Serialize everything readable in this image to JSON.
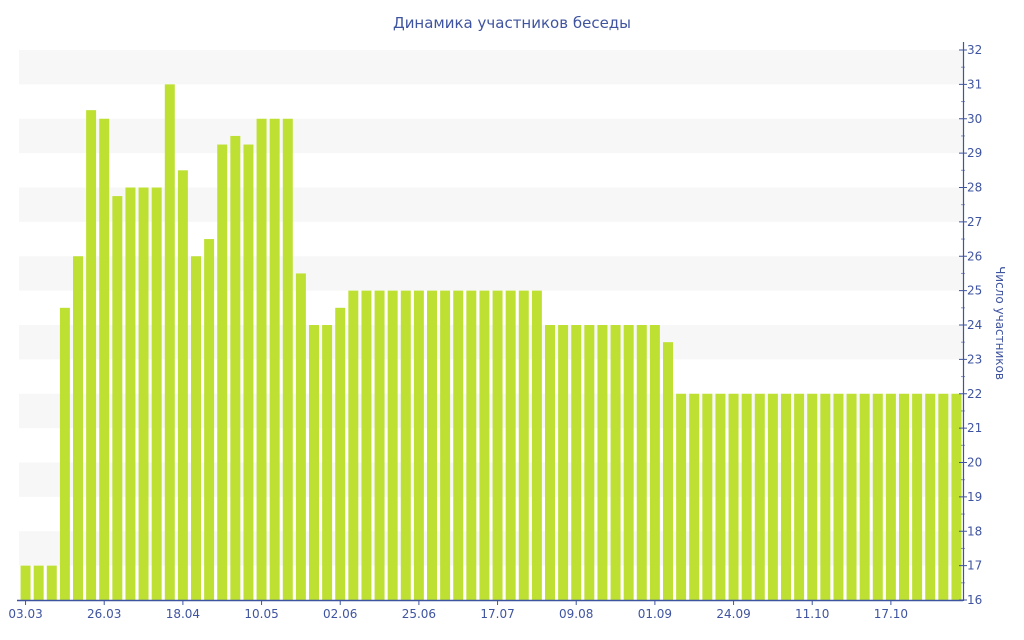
{
  "chart_data": {
    "type": "bar",
    "title": "Динамика участников беседы",
    "xlabel": "",
    "ylabel": "Число участников",
    "ylim": [
      16,
      32
    ],
    "y_axis_position": "right",
    "grid": "alternating horizontal bands",
    "legend": "none",
    "colors": {
      "bar": "#bde032",
      "axis": "#3f54a0",
      "band": "#f7f7f7"
    },
    "y_ticks": [
      "16",
      "17",
      "18",
      "19",
      "20",
      "21",
      "22",
      "23",
      "24",
      "25",
      "26",
      "27",
      "28",
      "29",
      "30",
      "31",
      "32"
    ],
    "x_tick_labels": [
      {
        "index": 0,
        "label": "03.03"
      },
      {
        "index": 6,
        "label": "26.03"
      },
      {
        "index": 12,
        "label": "18.04"
      },
      {
        "index": 18,
        "label": "10.05"
      },
      {
        "index": 24,
        "label": "02.06"
      },
      {
        "index": 30,
        "label": "25.06"
      },
      {
        "index": 36,
        "label": "17.07"
      },
      {
        "index": 42,
        "label": "09.08"
      },
      {
        "index": 48,
        "label": "01.09"
      },
      {
        "index": 54,
        "label": "24.09"
      },
      {
        "index": 60,
        "label": "11.10"
      },
      {
        "index": 66,
        "label": "17.10"
      }
    ],
    "values": [
      17,
      17,
      17,
      24.5,
      26,
      30.25,
      30,
      27.75,
      28,
      28,
      28,
      31,
      28.5,
      26,
      26.5,
      29.25,
      29.5,
      29.25,
      30,
      30,
      30,
      25.5,
      24,
      24,
      24.5,
      25,
      25,
      25,
      25,
      25,
      25,
      25,
      25,
      25,
      25,
      25,
      25,
      25,
      25,
      25,
      24,
      24,
      24,
      24,
      24,
      24,
      24,
      24,
      24,
      23.5,
      22,
      22,
      22,
      22,
      22,
      22,
      22,
      22,
      22,
      22,
      22,
      22,
      22,
      22,
      22,
      22,
      22,
      22,
      22,
      22,
      22,
      22
    ]
  }
}
